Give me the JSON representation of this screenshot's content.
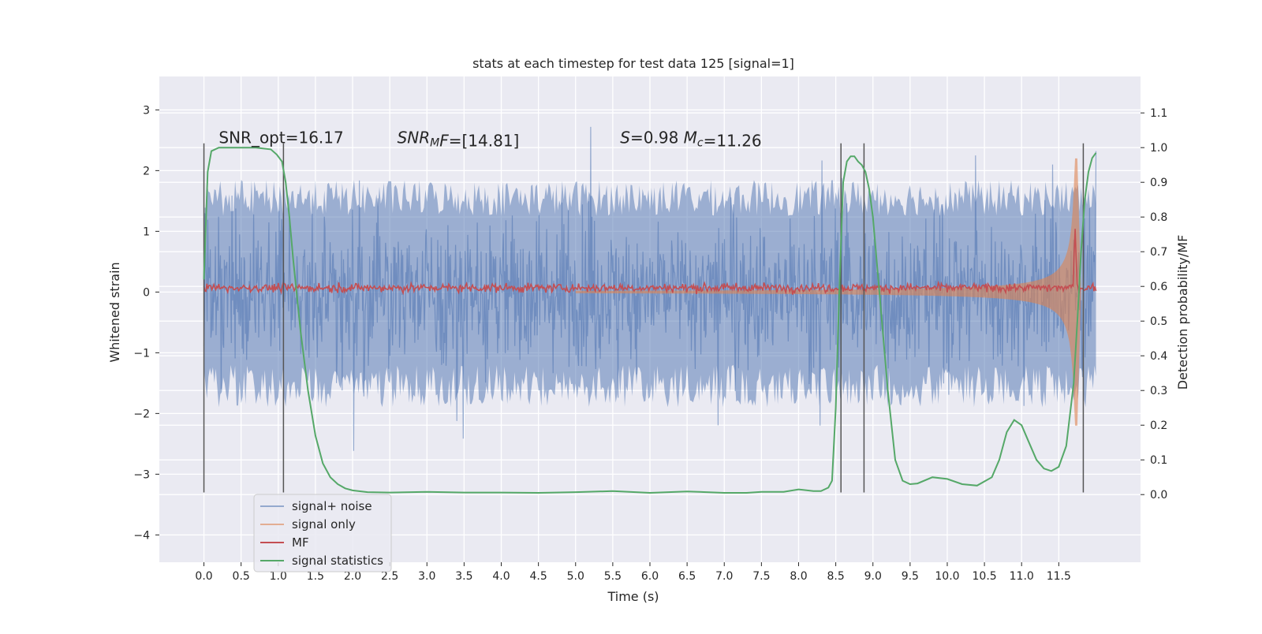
{
  "chart_data": {
    "type": "line",
    "title": "stats at each timestep for test data 125 [signal=1]",
    "xlabel": "Time (s)",
    "ylabel": "Whitened strain",
    "y2label": "Detection probability/MF",
    "xlim": [
      -0.6,
      12.6
    ],
    "ylim": [
      -4.45,
      3.55
    ],
    "y2lim": [
      -0.195,
      1.205
    ],
    "x_ticks": [
      0.0,
      0.5,
      1.0,
      1.5,
      2.0,
      2.5,
      3.0,
      3.5,
      4.0,
      4.5,
      5.0,
      5.5,
      6.0,
      6.5,
      7.0,
      7.5,
      8.0,
      8.5,
      9.0,
      9.5,
      10.0,
      10.5,
      11.0,
      11.5
    ],
    "y_ticks": [
      3,
      2,
      1,
      0,
      -1,
      -2,
      -3,
      -4
    ],
    "y_tick_labels": [
      "3",
      "2",
      "1",
      "0",
      "−1",
      "−2",
      "−3",
      "−4"
    ],
    "y2_ticks": [
      1.1,
      1.0,
      0.9,
      0.8,
      0.7,
      0.6,
      0.5,
      0.4,
      0.3,
      0.2,
      0.1,
      0.0
    ],
    "grid": true,
    "legend_position": "lower-left",
    "annotations": [
      {
        "x": 0.2,
        "y": 2.45,
        "text_parts": [
          {
            "t": "SNR_opt=16.17",
            "italic": false
          }
        ]
      },
      {
        "x": 2.6,
        "y": 2.45,
        "text_parts": [
          {
            "t": "SNR",
            "italic": true
          },
          {
            "t": "M",
            "italic": true,
            "sub": true
          },
          {
            "t": "F",
            "italic": true
          },
          {
            "t": "=[14.81]",
            "italic": false
          }
        ]
      },
      {
        "x": 5.6,
        "y": 2.45,
        "text_parts": [
          {
            "t": "S",
            "italic": true
          },
          {
            "t": "=0.98   ",
            "italic": false
          },
          {
            "t": "M",
            "italic": true
          },
          {
            "t": "c",
            "italic": true,
            "sub": true
          },
          {
            "t": "=11.26",
            "italic": false
          }
        ]
      }
    ],
    "vertical_lines": [
      {
        "x": 0.0,
        "y_from": -3.3,
        "y_to": 2.45
      },
      {
        "x": 1.07,
        "y_from": -3.3,
        "y_to": 2.45
      },
      {
        "x": 8.57,
        "y_from": -3.3,
        "y_to": 2.45
      },
      {
        "x": 8.88,
        "y_from": -3.3,
        "y_to": 2.45
      },
      {
        "x": 11.83,
        "y_from": -3.3,
        "y_to": 2.45
      }
    ],
    "series": [
      {
        "name": "signal+ noise",
        "color": "#4c72b0",
        "opacity": 0.55,
        "axis": "left",
        "kind": "noise",
        "x_range": [
          0.0,
          12.0
        ],
        "amp_typical": 1.3,
        "amp_max": 3.2
      },
      {
        "name": "signal only",
        "color": "#dd8452",
        "opacity": 0.6,
        "axis": "left",
        "kind": "chirp",
        "x_range": [
          5.0,
          11.8
        ],
        "amp_start": 0.02,
        "amp_end": 2.2,
        "merger_time": 11.75
      },
      {
        "name": "MF",
        "color": "#c44e52",
        "axis": "left",
        "kind": "mf",
        "baseline": 0.07,
        "spread": 0.06,
        "peak": {
          "x": 11.72,
          "y": 1.0
        }
      },
      {
        "name": "signal statistics",
        "color": "#55a868",
        "axis": "right",
        "kind": "curve",
        "x": [
          0.0,
          0.05,
          0.1,
          0.2,
          0.3,
          0.5,
          0.7,
          0.9,
          0.98,
          1.05,
          1.1,
          1.15,
          1.2,
          1.3,
          1.4,
          1.5,
          1.6,
          1.7,
          1.8,
          1.9,
          2.0,
          2.2,
          2.5,
          3.0,
          3.5,
          4.0,
          4.5,
          5.0,
          5.5,
          6.0,
          6.5,
          7.0,
          7.3,
          7.5,
          7.8,
          8.0,
          8.2,
          8.3,
          8.4,
          8.45,
          8.5,
          8.55,
          8.6,
          8.65,
          8.7,
          8.75,
          8.8,
          8.85,
          8.9,
          8.95,
          9.0,
          9.1,
          9.2,
          9.3,
          9.4,
          9.5,
          9.6,
          9.8,
          10.0,
          10.2,
          10.4,
          10.6,
          10.7,
          10.8,
          10.9,
          11.0,
          11.1,
          11.2,
          11.3,
          11.4,
          11.5,
          11.6,
          11.7,
          11.75,
          11.8,
          11.85,
          11.9,
          11.95,
          12.0
        ],
        "y": [
          0.62,
          0.93,
          0.99,
          1.0,
          1.0,
          1.0,
          1.0,
          0.995,
          0.98,
          0.96,
          0.9,
          0.8,
          0.68,
          0.47,
          0.3,
          0.17,
          0.09,
          0.05,
          0.03,
          0.018,
          0.012,
          0.007,
          0.006,
          0.008,
          0.006,
          0.006,
          0.005,
          0.007,
          0.01,
          0.005,
          0.009,
          0.005,
          0.005,
          0.008,
          0.008,
          0.015,
          0.01,
          0.01,
          0.02,
          0.04,
          0.25,
          0.6,
          0.9,
          0.96,
          0.975,
          0.975,
          0.96,
          0.95,
          0.93,
          0.88,
          0.8,
          0.55,
          0.3,
          0.1,
          0.04,
          0.03,
          0.032,
          0.05,
          0.045,
          0.03,
          0.026,
          0.05,
          0.1,
          0.18,
          0.215,
          0.2,
          0.15,
          0.1,
          0.075,
          0.068,
          0.08,
          0.14,
          0.32,
          0.5,
          0.7,
          0.85,
          0.93,
          0.97,
          0.985
        ]
      }
    ]
  }
}
